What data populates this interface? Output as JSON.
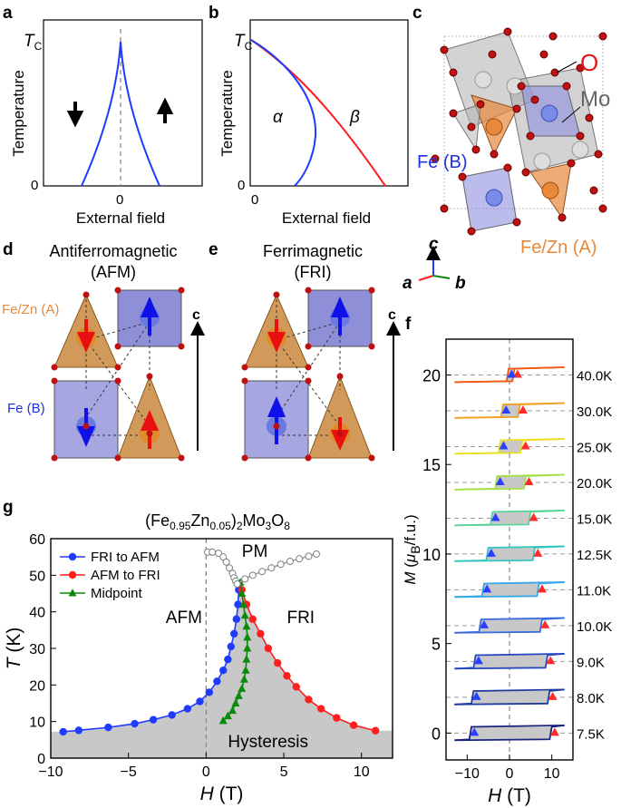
{
  "panels": {
    "a": {
      "label": "a",
      "tc_letter": "T",
      "tc_sub": "C",
      "ylabel": "Temperature",
      "xlabel": "External field",
      "x_zero": "0",
      "y_zero": "0"
    },
    "b": {
      "label": "b",
      "tc_letter": "T",
      "tc_sub": "C",
      "ylabel": "Temperature",
      "xlabel": "External field",
      "x_zero": "0",
      "y_zero": "0",
      "region_alpha": "α",
      "region_beta": "β"
    },
    "c": {
      "label": "c",
      "O": "O",
      "Mo": "Mo",
      "FeB": "Fe (B)",
      "FeZnA": "Fe/Zn (A)",
      "axis_c": "c",
      "axis_a": "a",
      "axis_b": "b"
    },
    "d": {
      "label": "d",
      "title1": "Antiferromagnetic",
      "title2": "(AFM)",
      "site_A": "Fe/Zn (A)",
      "site_B": "Fe (B)",
      "caxis": "c"
    },
    "e": {
      "label": "e",
      "title1": "Ferrimagnetic",
      "title2": "(FRI)",
      "caxis": "c"
    },
    "f": {
      "label": "f"
    },
    "g": {
      "label": "g",
      "region_PM": "PM",
      "region_AFM": "AFM",
      "region_FRI": "FRI",
      "region_hyst": "Hysteresis"
    }
  },
  "colors": {
    "blue": "#1f3bff",
    "red": "#ff1f1f",
    "green": "#0a8a0a",
    "orange": "#e8883a",
    "gray": "#c8c8c8"
  },
  "chart_data": [
    {
      "panel": "g",
      "type": "line",
      "title": "(Fe0.95Zn0.05)2Mo3O8",
      "title_parts": {
        "a": "(Fe",
        "b": "0.95",
        "c": "Zn",
        "d": "0.05",
        "e": ")",
        "f": "2",
        "g": "Mo",
        "h": "3",
        "i": "O",
        "j": "8"
      },
      "xlabel": "H (T)",
      "xlabel_parts": {
        "sym": "H",
        "unit": " (T)"
      },
      "ylabel": "T (K)",
      "ylabel_parts": {
        "sym": "T",
        "unit": " (K)"
      },
      "xlim": [
        -10,
        12
      ],
      "ylim": [
        0,
        60
      ],
      "xticks": [
        "−10",
        "−5",
        "0",
        "5",
        "10"
      ],
      "xtick_values": [
        -10,
        -5,
        0,
        5,
        10
      ],
      "yticks": [
        "0",
        "10",
        "20",
        "30",
        "40",
        "50",
        "60"
      ],
      "ytick_values": [
        0,
        10,
        20,
        30,
        40,
        50,
        60
      ],
      "legend_position": "top-left",
      "series": [
        {
          "name": "FRI to AFM",
          "marker": "circle",
          "color": "#1f3bff",
          "x": [
            -9.2,
            -8.2,
            -6.3,
            -4.6,
            -3.4,
            -2.2,
            -1.2,
            -0.4,
            0.2,
            0.7,
            1.1,
            1.4,
            1.6,
            1.8,
            1.95,
            2.05,
            2.1
          ],
          "y": [
            7.2,
            7.6,
            8.4,
            9.4,
            10.5,
            11.8,
            13.5,
            15.5,
            18,
            21,
            24,
            27,
            30.5,
            34,
            38,
            42,
            46
          ]
        },
        {
          "name": "AFM to FRI",
          "marker": "circle",
          "color": "#ff1f1f",
          "x": [
            2.3,
            2.6,
            3.0,
            3.5,
            4.0,
            4.6,
            5.2,
            5.8,
            6.6,
            7.4,
            8.4,
            9.5,
            10.9
          ],
          "y": [
            46,
            42,
            38,
            34,
            30,
            26,
            22.5,
            19.5,
            16,
            13.5,
            11,
            9,
            7.5
          ]
        },
        {
          "name": "Midpoint",
          "marker": "triangle",
          "color": "#0a8a0a",
          "x": [
            1.1,
            1.4,
            1.7,
            1.9,
            2.1,
            2.3,
            2.45,
            2.55,
            2.6,
            2.65,
            2.65,
            2.6,
            2.5,
            2.4,
            2.3,
            2.2
          ],
          "y": [
            10.2,
            11.5,
            13,
            15,
            17,
            19,
            21.5,
            24,
            27,
            30,
            33,
            36,
            39,
            42,
            45,
            48
          ]
        },
        {
          "name": "PM boundary",
          "marker": "circle-open",
          "color": "#a0a0a0",
          "x": [
            0.1,
            0.4,
            0.8,
            1.1,
            1.3,
            1.5,
            1.7,
            1.8,
            1.9,
            2.0,
            2.5,
            3.0,
            3.6,
            4.2,
            4.8,
            5.4,
            6.0,
            6.6,
            7.1
          ],
          "y": [
            56.3,
            56.3,
            56,
            55,
            53.6,
            52,
            50.5,
            49.3,
            48.4,
            47.6,
            49.0,
            50.0,
            51.0,
            52.0,
            53.0,
            53.8,
            54.5,
            55.2,
            55.8
          ]
        }
      ]
    },
    {
      "panel": "f",
      "type": "line",
      "ylabel_parts": {
        "sym": "M",
        "open": " (",
        "mu": "μ",
        "sub": "B",
        "rest": "/f.u.)"
      },
      "xlabel_parts": {
        "sym": "H",
        "unit": " (T)"
      },
      "xlim": [
        -15,
        15
      ],
      "ylim": [
        -1.5,
        22
      ],
      "xticks": [
        "−10",
        "0",
        "10"
      ],
      "xtick_values": [
        -10,
        0,
        10
      ],
      "yticks": [
        "0",
        "5",
        "10",
        "15",
        "20"
      ],
      "ytick_values": [
        0,
        5,
        10,
        15,
        20
      ],
      "loops": [
        {
          "label": "7.5K",
          "offset": 0,
          "hc": 9.5,
          "slope": 0.08,
          "color": "#1a237e"
        },
        {
          "label": "8.0K",
          "offset": 2,
          "hc": 9.0,
          "slope": 0.08,
          "color": "#1e3a9a"
        },
        {
          "label": "9.0K",
          "offset": 4,
          "hc": 8.5,
          "slope": 0.08,
          "color": "#2848c0"
        },
        {
          "label": "10.0K",
          "offset": 6,
          "hc": 7.2,
          "slope": 0.08,
          "color": "#3a6ee0"
        },
        {
          "label": "11.0K",
          "offset": 8,
          "hc": 6.5,
          "slope": 0.08,
          "color": "#35a6e6"
        },
        {
          "label": "12.5K",
          "offset": 10,
          "hc": 5.5,
          "slope": 0.08,
          "color": "#35c6c0"
        },
        {
          "label": "15.0K",
          "offset": 12,
          "hc": 4.5,
          "slope": 0.08,
          "color": "#5bd49a"
        },
        {
          "label": "20.0K",
          "offset": 14,
          "hc": 3.4,
          "slope": 0.08,
          "color": "#a6e046"
        },
        {
          "label": "25.0K",
          "offset": 16,
          "hc": 2.6,
          "slope": 0.08,
          "color": "#e8e020"
        },
        {
          "label": "30.0K",
          "offset": 18,
          "hc": 2.0,
          "slope": 0.08,
          "color": "#f0a020"
        },
        {
          "label": "40.0K",
          "offset": 20,
          "hc": 0.7,
          "slope": 0.08,
          "color": "#f05a10"
        }
      ]
    }
  ]
}
